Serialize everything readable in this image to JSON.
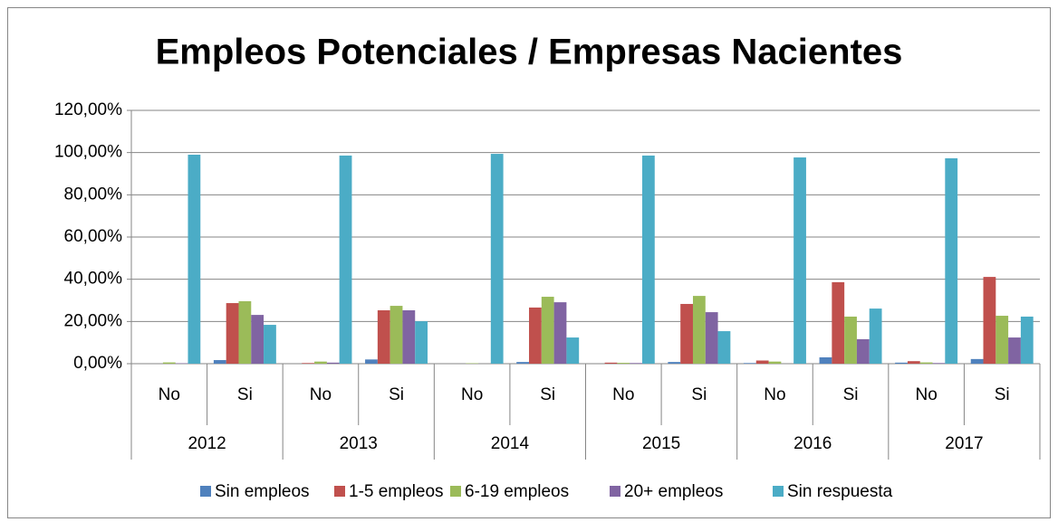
{
  "chart_data": {
    "type": "bar",
    "title": "Empleos Potenciales / Empresas Nacientes",
    "categories": [
      "No",
      "Si",
      "No",
      "Si",
      "No",
      "Si",
      "No",
      "Si",
      "No",
      "Si",
      "No",
      "Si"
    ],
    "category_groups": [
      "2012",
      "2013",
      "2014",
      "2015",
      "2016",
      "2017"
    ],
    "series": [
      {
        "name": "Sin empleos",
        "color": "#4f81bd",
        "values": [
          0,
          1.7,
          0,
          2.0,
          0,
          0.8,
          0,
          0.8,
          0.3,
          3.0,
          0.5,
          2.2
        ]
      },
      {
        "name": "1-5 empleos",
        "color": "#c0504d",
        "values": [
          0,
          28.7,
          0.3,
          25.3,
          0,
          26.6,
          0.5,
          28.3,
          1.5,
          38.6,
          1.2,
          41.1
        ]
      },
      {
        "name": "6-19 empleos",
        "color": "#9bbb59",
        "values": [
          0.6,
          29.6,
          1.0,
          27.4,
          0.2,
          31.7,
          0.4,
          32.1,
          1.0,
          22.3,
          0.6,
          22.7
        ]
      },
      {
        "name": "20+ empleos",
        "color": "#8064a2",
        "values": [
          0.2,
          23.1,
          0.5,
          25.3,
          0,
          29.1,
          0.3,
          24.4,
          0,
          11.6,
          0.3,
          12.4
        ]
      },
      {
        "name": "Sin respuesta",
        "color": "#4bacc6",
        "values": [
          99.0,
          18.4,
          98.6,
          20.1,
          99.4,
          12.4,
          98.6,
          15.4,
          97.7,
          26.1,
          97.3,
          22.3
        ]
      }
    ],
    "ylim": [
      0,
      120
    ],
    "yticks": [
      {
        "value": 0,
        "label": "0,00%"
      },
      {
        "value": 20,
        "label": "20,00%"
      },
      {
        "value": 40,
        "label": "40,00%"
      },
      {
        "value": 60,
        "label": "60,00%"
      },
      {
        "value": 80,
        "label": "80,00%"
      },
      {
        "value": 100,
        "label": "100,00%"
      },
      {
        "value": 120,
        "label": "120,00%"
      }
    ],
    "grid": true,
    "legend": "bottom"
  }
}
